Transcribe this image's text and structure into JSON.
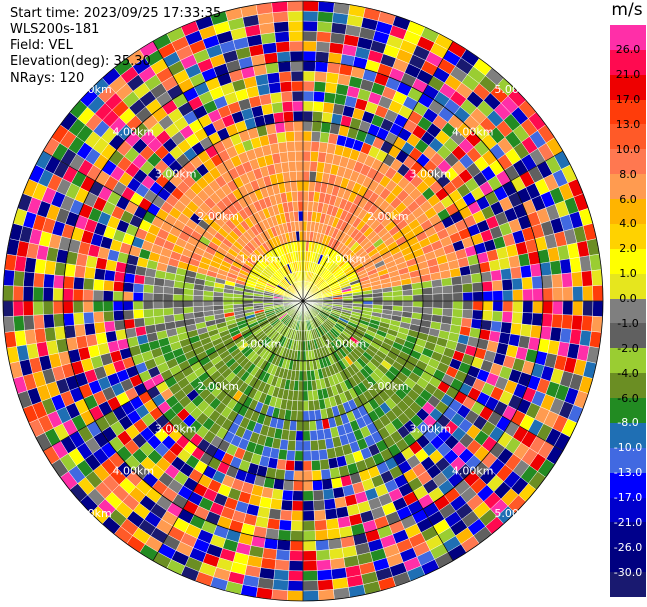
{
  "header": {
    "start_time": "Start time: 2023/09/25 17:33:35",
    "instrument": "WLS200s-181",
    "field": "Field: VEL",
    "elevation": "Elevation(deg): 35.30",
    "nrays": "NRays: 120"
  },
  "chart_data": {
    "type": "heatmap",
    "title": "",
    "projection": "polar (PPI)",
    "field": "VEL",
    "units": "m/s",
    "range_ring_labels": [
      "1.00km",
      "2.00km",
      "3.00km",
      "4.00km",
      "5.00km"
    ],
    "range_rings_km": [
      1,
      2,
      3,
      4,
      5
    ],
    "max_range_km": 5.0,
    "nrays": 120,
    "colorbar": {
      "unit_label": "m/s",
      "tick_labels": [
        "26.0",
        "21.0",
        "17.0",
        "13.0",
        "10.0",
        "8.0",
        "6.0",
        "4.0",
        "2.0",
        "1.0",
        "0.0",
        "-1.0",
        "-2.0",
        "-4.0",
        "-6.0",
        "-8.0",
        "-10.0",
        "-13.0",
        "-17.0",
        "-21.0",
        "-26.0",
        "-30.0"
      ],
      "colors": [
        "#ff2fa8",
        "#ff0a50",
        "#ee0000",
        "#ff3c0a",
        "#ff5a28",
        "#ff7850",
        "#ff9b50",
        "#ffb400",
        "#ffd200",
        "#ffff00",
        "#e6e61e",
        "#7f7f7f",
        "#606060",
        "#9acd32",
        "#6b8e23",
        "#228b22",
        "#1f6fb4",
        "#4169e1",
        "#0000ff",
        "#0000cd",
        "#00008b",
        "#000080",
        "#191970"
      ]
    },
    "field_pattern": "near range: positive (yellow/orange) velocities to the north, negative (green/olive) to the south; beyond ~3 km the field is noise (random colors)"
  }
}
